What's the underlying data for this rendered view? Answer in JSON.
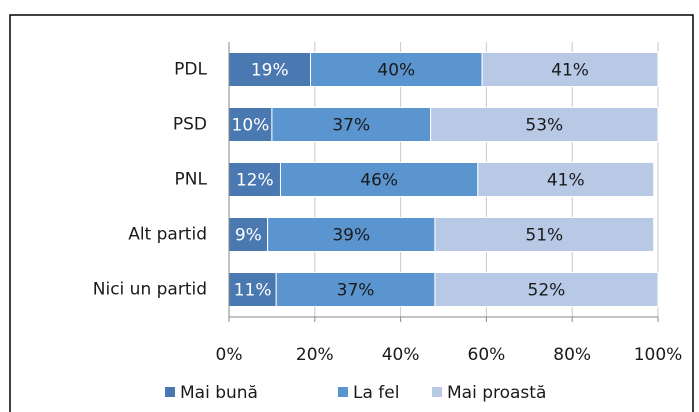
{
  "chart_data": {
    "type": "stacked_bar_horizontal",
    "categories": [
      "PDL",
      "PSD",
      "PNL",
      "Alt partid",
      "Nici un partid"
    ],
    "series": [
      {
        "name": "Mai bună",
        "color": "#4a78b0",
        "values": [
          19,
          10,
          12,
          9,
          11
        ],
        "value_labels": [
          "19%",
          "10%",
          "12%",
          "9%",
          "11%"
        ]
      },
      {
        "name": "La fel",
        "color": "#5b95d0",
        "values": [
          40,
          37,
          46,
          39,
          37
        ],
        "value_labels": [
          "40%",
          "37%",
          "46%",
          "39%",
          "37%"
        ]
      },
      {
        "name": "Mai proastă",
        "color": "#b8c9e6",
        "values": [
          41,
          53,
          41,
          51,
          52
        ],
        "value_labels": [
          "41%",
          "53%",
          "41%",
          "51%",
          "52%"
        ]
      }
    ],
    "xlim": [
      0,
      100
    ],
    "xticks": [
      {
        "value": 0,
        "label": "0%"
      },
      {
        "value": 20,
        "label": "20%"
      },
      {
        "value": 40,
        "label": "40%"
      },
      {
        "value": 60,
        "label": "60%"
      },
      {
        "value": 80,
        "label": "80%"
      },
      {
        "value": 100,
        "label": "100%"
      }
    ],
    "grid": true,
    "legend": "bottom"
  }
}
